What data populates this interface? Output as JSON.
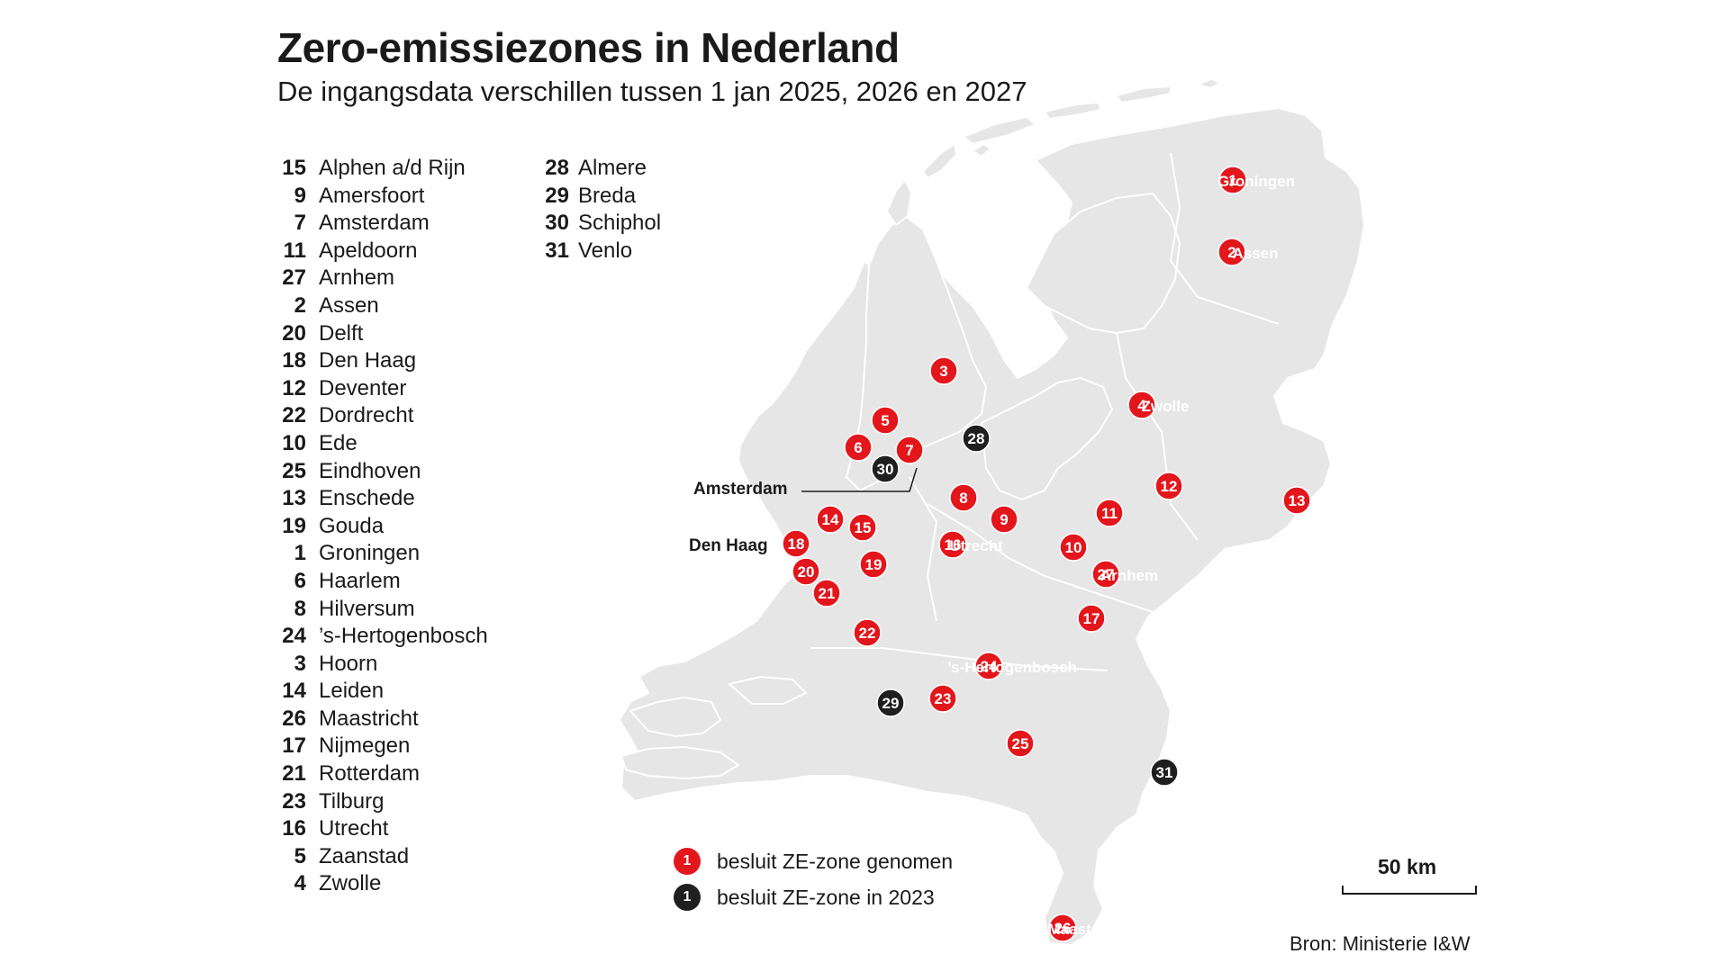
{
  "title": "Zero-emissiezones in Nederland",
  "subtitle": "De ingangsdata verschillen tussen 1 jan 2025, 2026 en 2027",
  "legend": [
    {
      "num": "15",
      "city": "Alphen a/d Rijn"
    },
    {
      "num": "9",
      "city": "Amersfoort"
    },
    {
      "num": "7",
      "city": "Amsterdam"
    },
    {
      "num": "11",
      "city": "Apeldoorn"
    },
    {
      "num": "27",
      "city": "Arnhem"
    },
    {
      "num": "2",
      "city": "Assen"
    },
    {
      "num": "20",
      "city": "Delft"
    },
    {
      "num": "18",
      "city": "Den Haag"
    },
    {
      "num": "12",
      "city": "Deventer"
    },
    {
      "num": "22",
      "city": "Dordrecht"
    },
    {
      "num": "10",
      "city": "Ede"
    },
    {
      "num": "25",
      "city": "Eindhoven"
    },
    {
      "num": "13",
      "city": "Enschede"
    },
    {
      "num": "19",
      "city": "Gouda"
    },
    {
      "num": "1",
      "city": "Groningen"
    },
    {
      "num": "6",
      "city": "Haarlem"
    },
    {
      "num": "8",
      "city": "Hilversum"
    },
    {
      "num": "24",
      "city": "’s-Hertogenbosch"
    },
    {
      "num": "3",
      "city": "Hoorn"
    },
    {
      "num": "14",
      "city": "Leiden"
    },
    {
      "num": "26",
      "city": "Maastricht"
    },
    {
      "num": "17",
      "city": "Nijmegen"
    },
    {
      "num": "21",
      "city": "Rotterdam"
    },
    {
      "num": "23",
      "city": "Tilburg"
    },
    {
      "num": "16",
      "city": "Utrecht"
    },
    {
      "num": "5",
      "city": "Zaanstad"
    },
    {
      "num": "4",
      "city": "Zwolle"
    },
    {
      "num": "28",
      "city": "Almere"
    },
    {
      "num": "29",
      "city": "Breda"
    },
    {
      "num": "30",
      "city": "Schiphol"
    },
    {
      "num": "31",
      "city": "Venlo"
    }
  ],
  "markers": [
    {
      "num": "1",
      "status": "taken",
      "label": "Groningen"
    },
    {
      "num": "2",
      "status": "taken",
      "label": "Assen"
    },
    {
      "num": "3",
      "status": "taken",
      "label": ""
    },
    {
      "num": "4",
      "status": "taken",
      "label": "Zwolle"
    },
    {
      "num": "5",
      "status": "taken",
      "label": ""
    },
    {
      "num": "6",
      "status": "taken",
      "label": ""
    },
    {
      "num": "7",
      "status": "taken",
      "label": ""
    },
    {
      "num": "8",
      "status": "taken",
      "label": ""
    },
    {
      "num": "9",
      "status": "taken",
      "label": ""
    },
    {
      "num": "10",
      "status": "taken",
      "label": ""
    },
    {
      "num": "11",
      "status": "taken",
      "label": ""
    },
    {
      "num": "12",
      "status": "taken",
      "label": ""
    },
    {
      "num": "13",
      "status": "taken",
      "label": ""
    },
    {
      "num": "14",
      "status": "taken",
      "label": ""
    },
    {
      "num": "15",
      "status": "taken",
      "label": ""
    },
    {
      "num": "16",
      "status": "taken",
      "label": "Utrecht"
    },
    {
      "num": "17",
      "status": "taken",
      "label": ""
    },
    {
      "num": "18",
      "status": "taken",
      "label": ""
    },
    {
      "num": "19",
      "status": "taken",
      "label": ""
    },
    {
      "num": "20",
      "status": "taken",
      "label": ""
    },
    {
      "num": "21",
      "status": "taken",
      "label": ""
    },
    {
      "num": "22",
      "status": "taken",
      "label": ""
    },
    {
      "num": "23",
      "status": "taken",
      "label": ""
    },
    {
      "num": "24",
      "status": "taken",
      "label": "’s-Hertogenbosch"
    },
    {
      "num": "25",
      "status": "taken",
      "label": ""
    },
    {
      "num": "26",
      "status": "taken",
      "label": "Maastricht"
    },
    {
      "num": "27",
      "status": "taken",
      "label": "Arnhem"
    },
    {
      "num": "28",
      "status": "2023",
      "label": ""
    },
    {
      "num": "29",
      "status": "2023",
      "label": ""
    },
    {
      "num": "30",
      "status": "2023",
      "label": ""
    },
    {
      "num": "31",
      "status": "2023",
      "label": ""
    }
  ],
  "extra_labels": {
    "amsterdam": "Amsterdam",
    "den_haag": "Den Haag"
  },
  "key": {
    "red_label": "besluit ZE-zone genomen",
    "black_label": "besluit ZE-zone in 2023",
    "sample_num": "1"
  },
  "scale": {
    "label": "50 km"
  },
  "source": "Bron: Ministerie I&W",
  "colors": {
    "taken": "#e3161c",
    "2023": "#1f1f1f",
    "land": "#e6e6e6"
  }
}
